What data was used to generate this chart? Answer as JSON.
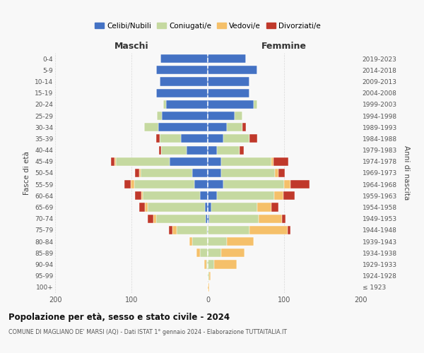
{
  "age_groups": [
    "100+",
    "95-99",
    "90-94",
    "85-89",
    "80-84",
    "75-79",
    "70-74",
    "65-69",
    "60-64",
    "55-59",
    "50-54",
    "45-49",
    "40-44",
    "35-39",
    "30-34",
    "25-29",
    "20-24",
    "15-19",
    "10-14",
    "5-9",
    "0-4"
  ],
  "birth_years": [
    "≤ 1923",
    "1924-1928",
    "1929-1933",
    "1934-1938",
    "1939-1943",
    "1944-1948",
    "1949-1953",
    "1954-1958",
    "1959-1963",
    "1964-1968",
    "1969-1973",
    "1974-1978",
    "1979-1983",
    "1984-1988",
    "1989-1993",
    "1994-1998",
    "1999-2003",
    "2004-2008",
    "2009-2013",
    "2014-2018",
    "2019-2023"
  ],
  "m_celibi": [
    0,
    0,
    0,
    0,
    0,
    1,
    3,
    4,
    10,
    18,
    20,
    50,
    28,
    35,
    65,
    60,
    55,
    68,
    63,
    68,
    62
  ],
  "m_coniugati": [
    0,
    0,
    2,
    10,
    20,
    40,
    65,
    75,
    75,
    78,
    68,
    70,
    33,
    28,
    18,
    7,
    3,
    0,
    0,
    0,
    0
  ],
  "m_vedovi": [
    0,
    0,
    3,
    5,
    4,
    5,
    3,
    3,
    2,
    5,
    2,
    2,
    0,
    0,
    0,
    0,
    0,
    0,
    0,
    0,
    0
  ],
  "m_divorziati": [
    0,
    0,
    0,
    0,
    0,
    5,
    8,
    8,
    8,
    8,
    5,
    5,
    3,
    5,
    0,
    0,
    0,
    0,
    0,
    0,
    0
  ],
  "f_nubili": [
    0,
    0,
    0,
    0,
    0,
    0,
    2,
    5,
    12,
    20,
    18,
    18,
    12,
    20,
    25,
    35,
    60,
    55,
    55,
    65,
    50
  ],
  "f_coniugate": [
    0,
    2,
    8,
    18,
    25,
    55,
    65,
    60,
    75,
    80,
    70,
    65,
    30,
    35,
    20,
    10,
    5,
    0,
    0,
    0,
    0
  ],
  "f_vedove": [
    2,
    2,
    30,
    30,
    35,
    50,
    30,
    18,
    12,
    8,
    5,
    3,
    0,
    0,
    0,
    0,
    0,
    0,
    0,
    0,
    0
  ],
  "f_divorziate": [
    0,
    0,
    0,
    0,
    0,
    3,
    5,
    10,
    15,
    25,
    8,
    20,
    5,
    10,
    5,
    0,
    0,
    0,
    0,
    0,
    0
  ],
  "col_celibi": "#4472C4",
  "col_coniugati": "#c5d9a0",
  "col_vedovi": "#f5c06a",
  "col_divorziati": "#c0392b",
  "xlim": 200,
  "bg_color": "#f8f8f8",
  "grid_color": "#cccccc",
  "title": "Popolazione per età, sesso e stato civile - 2024",
  "subtitle": "COMUNE DI MAGLIANO DE' MARSI (AQ) - Dati ISTAT 1° gennaio 2024 - Elaborazione TUTTAITALIA.IT",
  "label_maschi": "Maschi",
  "label_femmine": "Femmine",
  "label_fascia": "Fasce di età",
  "label_anni": "Anni di nascita",
  "legend_labels": [
    "Celibi/Nubili",
    "Coniugati/e",
    "Vedovi/e",
    "Divorziati/e"
  ]
}
